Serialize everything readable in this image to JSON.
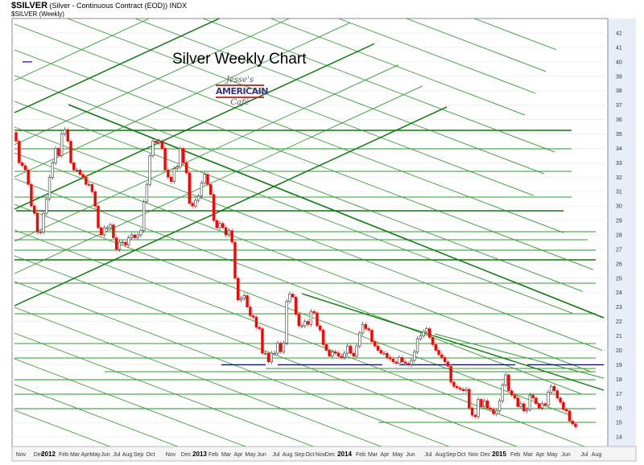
{
  "header": {
    "symbol": "$SILVER",
    "description": "(Silver - Continuous Contract (EOD)) INDX",
    "series_label": "$SILVER (Weekly)"
  },
  "logo_text": "Jesse's AMERICAIN Cafe",
  "chart_data": {
    "type": "candlestick",
    "title": "Silver Weekly Chart",
    "xlabel": "",
    "ylabel": "",
    "ylim": [
      14,
      42
    ],
    "y_ticks": [
      "42",
      "41",
      "40",
      "39",
      "38",
      "37",
      "36",
      "35",
      "34",
      "33",
      "32",
      "31",
      "30",
      "29",
      "28",
      "27",
      "26",
      "25",
      "24",
      "23",
      "22",
      "21",
      "20",
      "19",
      "18",
      "17",
      "16",
      "15",
      "14"
    ],
    "x_ticks": [
      "Nov",
      "Dec",
      "2012",
      "Feb",
      "Mar",
      "Apr",
      "May",
      "Jun",
      "Jul",
      "Aug",
      "Sep",
      "Oct",
      "Nov",
      "Dec",
      "2013",
      "Feb",
      "Mar",
      "Apr",
      "May",
      "Jun",
      "Jul",
      "Aug",
      "Sep",
      "Oct",
      "Nov",
      "Dec",
      "2014",
      "Feb",
      "Mar",
      "Apr",
      "May",
      "Jun",
      "Jul",
      "Aug",
      "Sep",
      "Oct",
      "Nov",
      "Dec",
      "2015",
      "Feb",
      "Mar",
      "Apr",
      "May",
      "Jun",
      "Jul",
      "Aug"
    ],
    "x_range": [
      "Nov 2011",
      "Aug 2015"
    ],
    "frequency": "weekly",
    "weekly_close": [
      34.5,
      33,
      32.8,
      32.5,
      31.5,
      30,
      29.5,
      28.2,
      28.2,
      29.5,
      30.5,
      32,
      33,
      34,
      33.5,
      35,
      35.3,
      34.5,
      33,
      32.5,
      32.5,
      32.2,
      32,
      31.5,
      31.5,
      31,
      30,
      28.5,
      28,
      28.5,
      28.5,
      28.7,
      27.8,
      27,
      27.5,
      27.5,
      27.3,
      27.8,
      28,
      27.8,
      28,
      28.3,
      30.3,
      31.5,
      33.5,
      34.5,
      34.4,
      34.5,
      34,
      32.5,
      32,
      31.7,
      32.6,
      32.7,
      34,
      33,
      32.3,
      30.2,
      30,
      30.4,
      30.7,
      31.6,
      32.2,
      31.5,
      30.8,
      29,
      28.5,
      28.8,
      28.5,
      28,
      28.3,
      27.5,
      25,
      23.5,
      23.6,
      23.8,
      23,
      22.4,
      22.3,
      21.6,
      21.5,
      19.8,
      19.8,
      19.2,
      19.8,
      19.8,
      20.5,
      19.9,
      20.5,
      23.4,
      23.9,
      23.7,
      22.5,
      21.7,
      21.7,
      22,
      21.8,
      22.7,
      22.6,
      21.7,
      21.4,
      20.4,
      20,
      19.6,
      19.9,
      19.8,
      19.6,
      19.5,
      19.8,
      20.3,
      19.8,
      19.6,
      20.3,
      21.2,
      21.8,
      21.5,
      21.4,
      20.6,
      20.3,
      20,
      19.8,
      19.8,
      19.5,
      19.4,
      19.2,
      19.1,
      19.5,
      19.2,
      19.1,
      19,
      19.3,
      19.9,
      20.8,
      21,
      21.3,
      21.5,
      20.9,
      20.4,
      20,
      19.7,
      19.5,
      19.2,
      18.9,
      17.8,
      17.5,
      17.4,
      17.3,
      17.2,
      17.3,
      16,
      15.5,
      15.4,
      16.6,
      16.1,
      16.5,
      16,
      15.9,
      15.6,
      15.8,
      16.5,
      17.6,
      18.3,
      17.2,
      16.9,
      16.7,
      16.1,
      16.3,
      15.8,
      15.9,
      16.9,
      16.7,
      16.3,
      16,
      16.3,
      16.2,
      17.1,
      17.5,
      17.2,
      16.7,
      16.4,
      15.9,
      15.8,
      15.1,
      14.9,
      14.7
    ],
    "horizontal_levels_blue": [
      19,
      40
    ],
    "grid": true,
    "colors": {
      "down": "#ff0000",
      "up": "#ffffff",
      "trendline": "#2e9a2e",
      "trendline_dark": "#0a7a0a",
      "support": "#0000dd"
    }
  }
}
